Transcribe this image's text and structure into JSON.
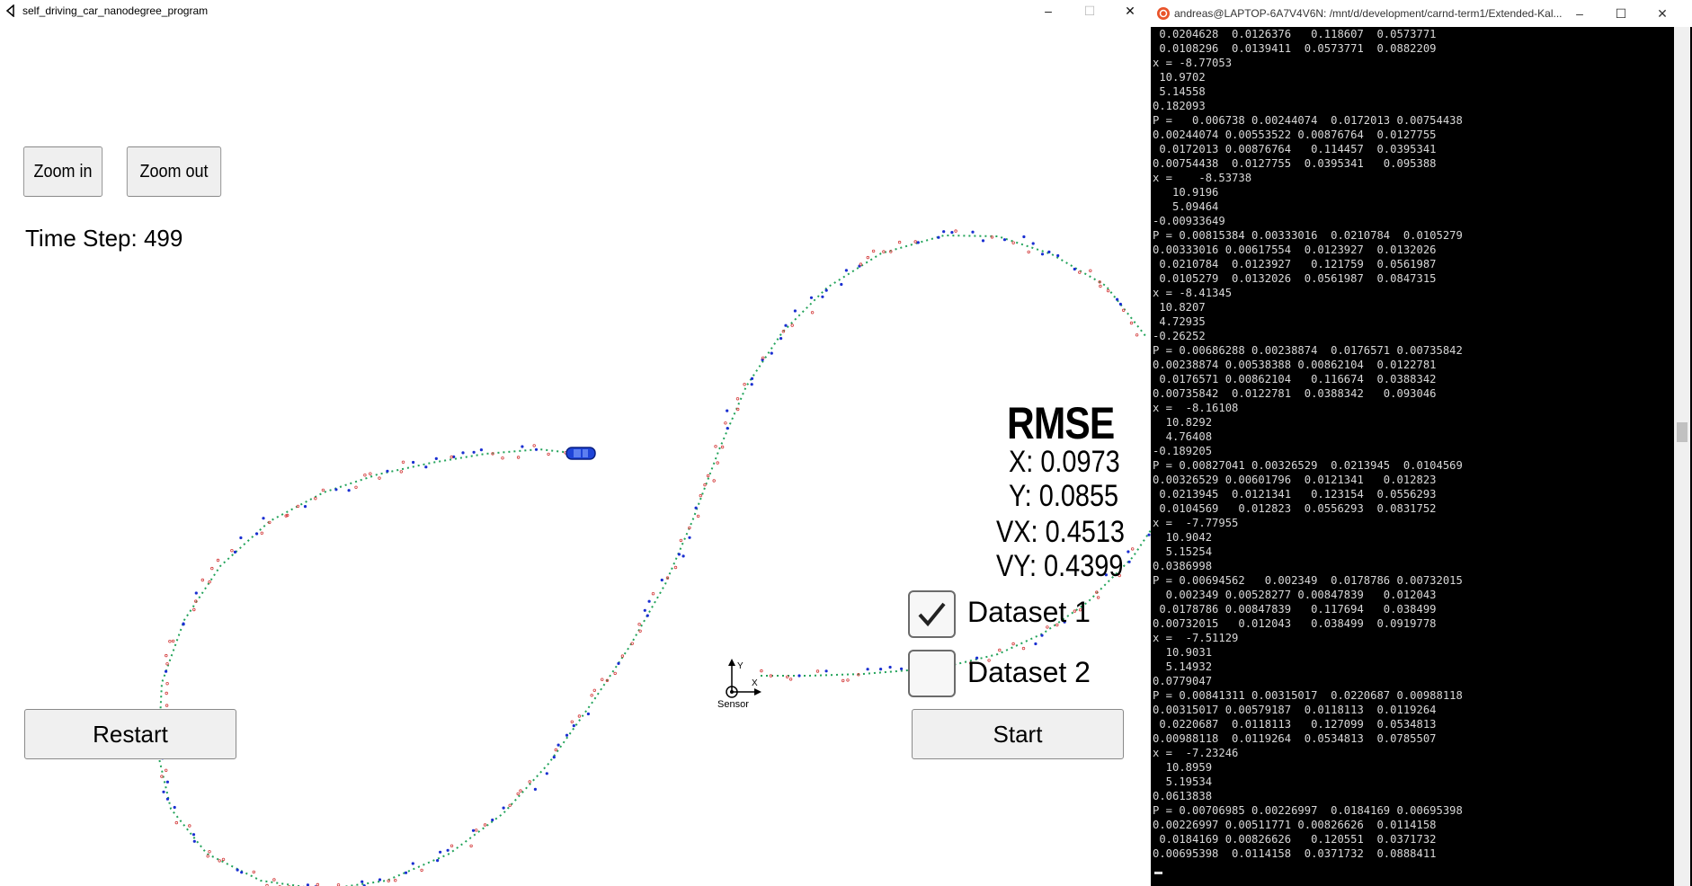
{
  "sim_window": {
    "title": "self_driving_car_nanodegree_program",
    "controls": [
      "–",
      "☐",
      "✕"
    ]
  },
  "buttons": {
    "zoom_in": "Zoom in",
    "zoom_out": "Zoom out",
    "restart": "Restart",
    "start": "Start"
  },
  "time_step": "Time Step: 499",
  "rmse": {
    "title": "RMSE",
    "x": "X: 0.0973",
    "y": "Y: 0.0855",
    "vx": "VX: 0.4513",
    "vy": "VY: 0.4399"
  },
  "datasets": [
    {
      "label": "Dataset 1",
      "checked": true
    },
    {
      "label": "Dataset 2",
      "checked": false
    }
  ],
  "sensor_label": "Sensor",
  "sensor_axis": {
    "x": "X",
    "y": "Y"
  },
  "colors": {
    "trajectory": "#22a35a",
    "lidar": "#d33a3a",
    "radar": "#1a2fd1",
    "car": "#1e44d8",
    "terminal_bg": "#000000",
    "terminal_icon": "#e9542b"
  },
  "terminal": {
    "title": "andreas@LAPTOP-6A7V4V6N: /mnt/d/development/carnd-term1/Extended-Kal...",
    "controls": [
      "–",
      "☐",
      "✕"
    ],
    "lines": [
      " 0.0204628  0.0126376   0.118607  0.0573771",
      " 0.0108296  0.0139411  0.0573771  0.0882209",
      "x = -8.77053",
      " 10.9702",
      " 5.14558",
      "0.182093",
      "P =   0.006738 0.00244074  0.0172013 0.00754438",
      "0.00244074 0.00553522 0.00876764  0.0127755",
      " 0.0172013 0.00876764   0.114457  0.0395341",
      "0.00754438  0.0127755  0.0395341   0.095388",
      "x =    -8.53738",
      "   10.9196",
      "   5.09464",
      "-0.00933649",
      "P = 0.00815384 0.00333016  0.0210784  0.0105279",
      "0.00333016 0.00617554  0.0123927  0.0132026",
      " 0.0210784  0.0123927   0.121759  0.0561987",
      " 0.0105279  0.0132026  0.0561987  0.0847315",
      "x = -8.41345",
      " 10.8207",
      " 4.72935",
      "-0.26252",
      "P = 0.00686288 0.00238874  0.0176571 0.00735842",
      "0.00238874 0.00538388 0.00862104  0.0122781",
      " 0.0176571 0.00862104   0.116674  0.0388342",
      "0.00735842  0.0122781  0.0388342   0.093046",
      "x =  -8.16108",
      "  10.8292",
      "  4.76408",
      "-0.189205",
      "P = 0.00827041 0.00326529  0.0213945  0.0104569",
      "0.00326529 0.00601796  0.0121341   0.012823",
      " 0.0213945  0.0121341   0.123154  0.0556293",
      " 0.0104569   0.012823  0.0556293  0.0831752",
      "x =  -7.77955",
      "  10.9042",
      "  5.15254",
      "0.0386998",
      "P = 0.00694562   0.002349  0.0178786 0.00732015",
      "  0.002349 0.00528277 0.00847839   0.012043",
      " 0.0178786 0.00847839   0.117694   0.038499",
      "0.00732015   0.012043   0.038499  0.0919778",
      "x =  -7.51129",
      "  10.9031",
      "  5.14932",
      "0.0779047",
      "P = 0.00841311 0.00315017  0.0220687 0.00988118",
      "0.00315017 0.00579187  0.0118113  0.0119264",
      " 0.0220687  0.0118113   0.127099  0.0534813",
      "0.00988118  0.0119264  0.0534813  0.0785507",
      "x =  -7.23246",
      "  10.8959",
      "  5.19534",
      "0.0613838",
      "P = 0.00706985 0.00226997  0.0184169 0.00695398",
      "0.00226997 0.00511771 0.00826626  0.0114158",
      " 0.0184169 0.00826626   0.120551  0.0371732",
      "0.00695398  0.0114158  0.0371732  0.0888411"
    ]
  }
}
